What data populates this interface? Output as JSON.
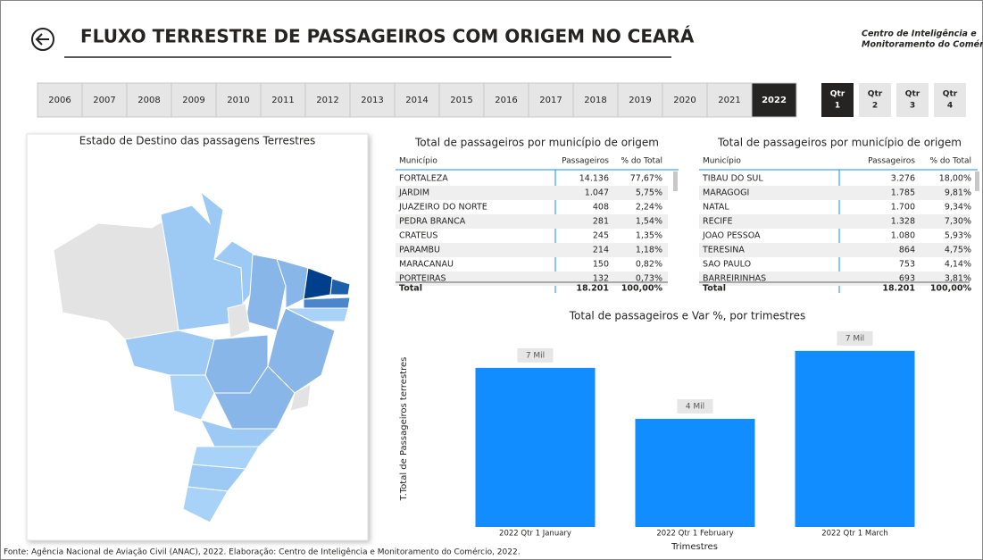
{
  "header": {
    "title": "FLUXO TERRESTRE DE PASSAGEIROS COM ORIGEM NO CEARÁ",
    "org": [
      "Centro de Inteligência e",
      "Monitoramento do Comércio"
    ]
  },
  "years": [
    "2006",
    "2007",
    "2008",
    "2009",
    "2010",
    "2011",
    "2012",
    "2013",
    "2014",
    "2015",
    "2016",
    "2017",
    "2018",
    "2019",
    "2020",
    "2021",
    "2022"
  ],
  "selected_year": "2022",
  "quarters": [
    {
      "top": "Qtr",
      "num": "1"
    },
    {
      "top": "Qtr",
      "num": "2"
    },
    {
      "top": "Qtr",
      "num": "3"
    },
    {
      "top": "Qtr",
      "num": "4"
    }
  ],
  "selected_quarter": "1",
  "map": {
    "title": "Estado de Destino das passagens Terrestres"
  },
  "table1": {
    "title": "Total de passageiros por município de origem",
    "columns": [
      "Município",
      "Passageiros",
      "% do Total"
    ],
    "rows": [
      [
        "FORTALEZA",
        "14.136",
        "77,67%"
      ],
      [
        "JARDIM",
        "1.047",
        "5,75%"
      ],
      [
        "JUAZEIRO DO NORTE",
        "408",
        "2,24%"
      ],
      [
        "PEDRA BRANCA",
        "281",
        "1,54%"
      ],
      [
        "CRATEUS",
        "245",
        "1,35%"
      ],
      [
        "PARAMBU",
        "214",
        "1,18%"
      ],
      [
        "MARACANAU",
        "150",
        "0,82%"
      ],
      [
        "PORTEIRAS",
        "132",
        "0,73%"
      ]
    ],
    "total": [
      "Total",
      "18.201",
      "100,00%"
    ]
  },
  "table2": {
    "title": "Total de passageiros por município de origem",
    "columns": [
      "Município",
      "Passageiros",
      "% do Total"
    ],
    "rows": [
      [
        "TIBAU DO SUL",
        "3.276",
        "18,00%"
      ],
      [
        "MARAGOGI",
        "1.785",
        "9,81%"
      ],
      [
        "NATAL",
        "1.700",
        "9,34%"
      ],
      [
        "RECIFE",
        "1.328",
        "7,30%"
      ],
      [
        "JOAO PESSOA",
        "1.080",
        "5,93%"
      ],
      [
        "TERESINA",
        "864",
        "4,75%"
      ],
      [
        "SAO PAULO",
        "753",
        "4,14%"
      ],
      [
        "BARREIRINHAS",
        "693",
        "3,81%"
      ]
    ],
    "total": [
      "Total",
      "18.201",
      "100,00%"
    ]
  },
  "chart_data": {
    "type": "bar",
    "title": "Total de passageiros e Var %, por trimestres",
    "y_label": "T.Total de Passageiros terrestres",
    "x_label": "Trimestres",
    "categories": [
      "2022 Qtr 1 January",
      "2022 Qtr 1 February",
      "2022 Qtr 1 March"
    ],
    "values": [
      6532,
      4440,
      7229
    ],
    "value_labels": [
      "7 Mil",
      "4 Mil",
      "7 Mil"
    ],
    "color": "#118dff",
    "ylim": [
      0,
      7700
    ]
  },
  "footer": "Fonte: Agência Nacional de Aviação Civil (ANAC), 2022. Elaboração: Centro de Inteligência e Monitoramento do Comércio, 2022."
}
